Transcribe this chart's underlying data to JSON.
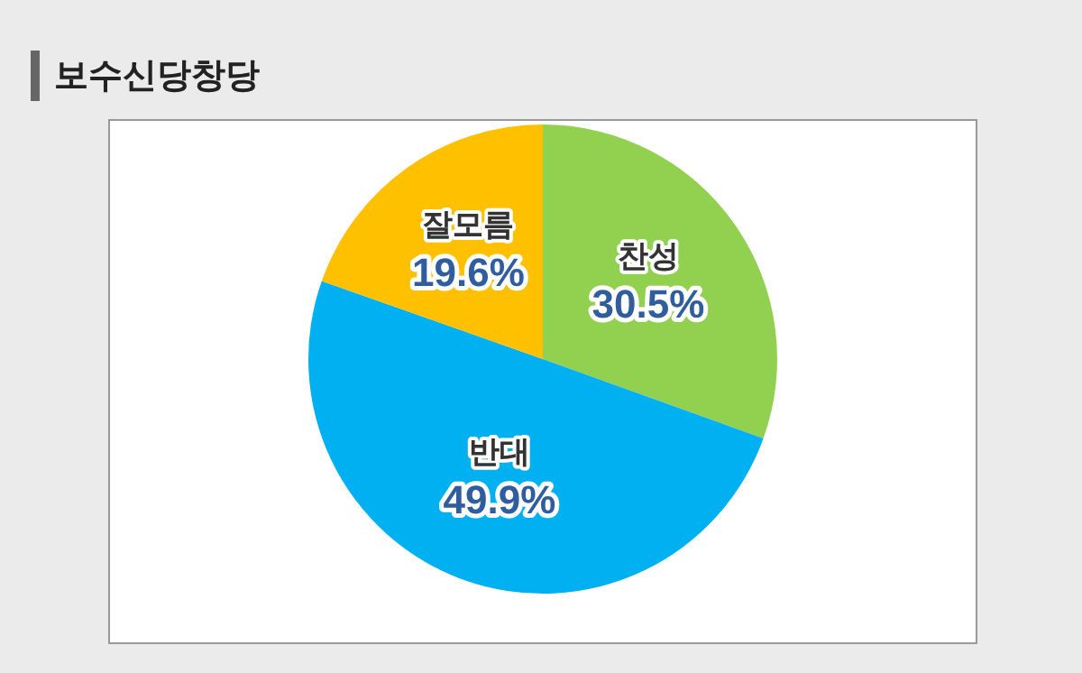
{
  "chart_data": {
    "type": "pie",
    "title": "보수신당창당",
    "categories": [
      "찬성",
      "반대",
      "잘모름"
    ],
    "values": [
      30.5,
      49.9,
      19.6
    ],
    "value_labels": [
      "30.5%",
      "49.9%",
      "19.6%"
    ],
    "colors": [
      "#92d050",
      "#00b0f0",
      "#ffc000"
    ],
    "legend": false
  }
}
